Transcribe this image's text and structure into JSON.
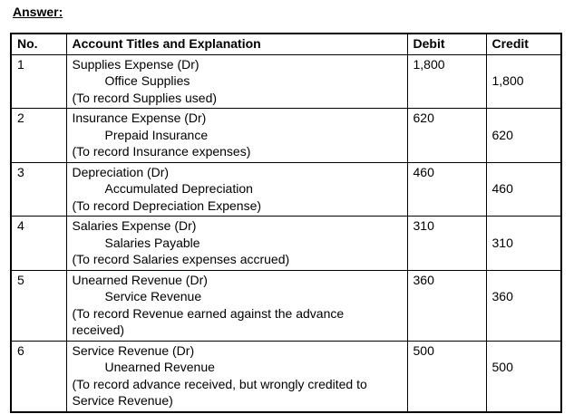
{
  "page": {
    "heading": "Answer:"
  },
  "table": {
    "headers": {
      "no": "No.",
      "account": "Account Titles and Explanation",
      "debit": "Debit",
      "credit": "Credit"
    },
    "rows": [
      {
        "no": "1",
        "lines": [
          {
            "text": "Supplies Expense (Dr)",
            "indent": false
          },
          {
            "text": "Office Supplies",
            "indent": true
          },
          {
            "text": "(To record Supplies used)",
            "indent": false
          }
        ],
        "debit": "1,800",
        "credit": "1,800"
      },
      {
        "no": "2",
        "lines": [
          {
            "text": "Insurance Expense (Dr)",
            "indent": false
          },
          {
            "text": "Prepaid Insurance",
            "indent": true
          },
          {
            "text": "(To record Insurance expenses)",
            "indent": false
          }
        ],
        "debit": "620",
        "credit": "620"
      },
      {
        "no": "3",
        "lines": [
          {
            "text": "Depreciation (Dr)",
            "indent": false
          },
          {
            "text": "Accumulated Depreciation",
            "indent": true
          },
          {
            "text": "(To record Depreciation Expense)",
            "indent": false
          }
        ],
        "debit": "460",
        "credit": "460"
      },
      {
        "no": "4",
        "lines": [
          {
            "text": "Salaries Expense (Dr)",
            "indent": false
          },
          {
            "text": "Salaries Payable",
            "indent": true
          },
          {
            "text": "(To record Salaries expenses accrued)",
            "indent": false
          }
        ],
        "debit": "310",
        "credit": "310"
      },
      {
        "no": "5",
        "lines": [
          {
            "text": "Unearned Revenue (Dr)",
            "indent": false
          },
          {
            "text": "Service Revenue",
            "indent": true
          },
          {
            "text": "(To record Revenue earned against the advance",
            "indent": false
          },
          {
            "text": "received)",
            "indent": false
          }
        ],
        "debit": "360",
        "credit": "360"
      },
      {
        "no": "6",
        "lines": [
          {
            "text": "Service Revenue (Dr)",
            "indent": false
          },
          {
            "text": "Unearned Revenue",
            "indent": true
          },
          {
            "text": "(To record advance received, but wrongly credited to",
            "indent": false
          },
          {
            "text": "Service Revenue)",
            "indent": false
          }
        ],
        "debit": "500",
        "credit": "500"
      }
    ]
  },
  "colors": {
    "border": "#000000",
    "text": "#000000",
    "background": "#ffffff"
  }
}
